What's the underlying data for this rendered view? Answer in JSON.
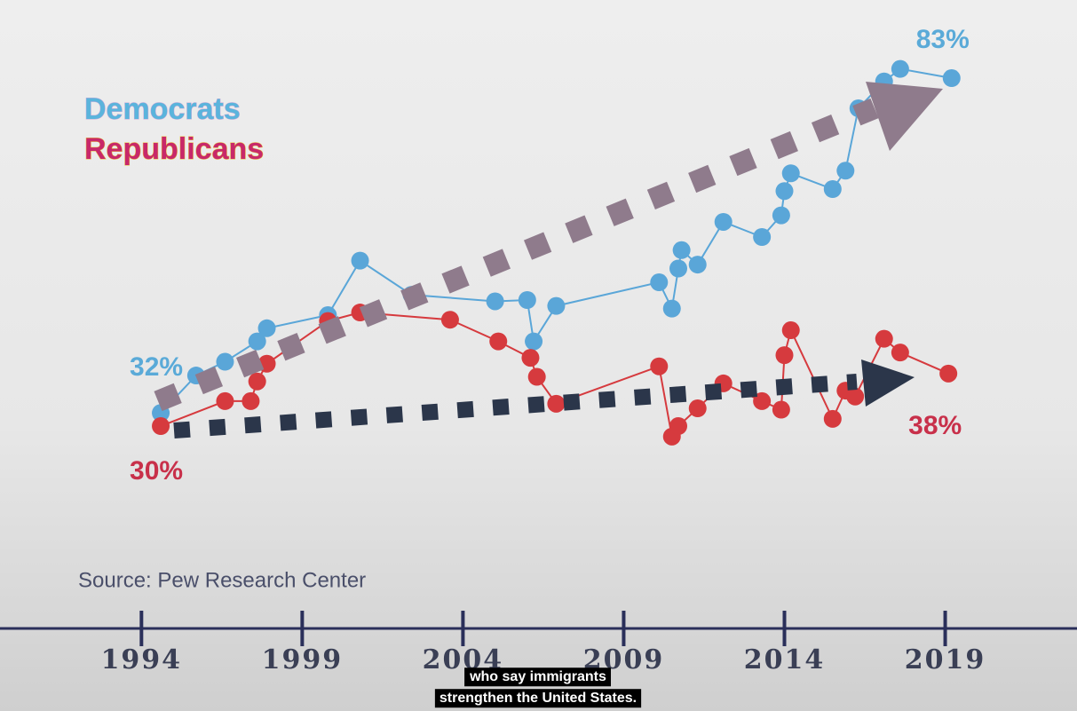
{
  "chart_data": {
    "type": "line",
    "series": [
      {
        "name": "Democrats",
        "color": "#5aa6d8",
        "x": [
          1994.6,
          1995.7,
          1996.6,
          1997.6,
          1997.9,
          1999.8,
          2000.8,
          2002.4,
          2005.0,
          2006.0,
          2006.2,
          2006.9,
          2010.1,
          2010.5,
          2010.7,
          2010.8,
          2011.3,
          2012.1,
          2013.3,
          2013.9,
          2014.0,
          2014.2,
          2015.5,
          2015.9,
          2016.3,
          2017.1,
          2017.6,
          2019.2
        ],
        "values": [
          32,
          37.7,
          39.8,
          42.9,
          44.9,
          46.9,
          55.2,
          50.0,
          49.0,
          49.2,
          42.9,
          48.3,
          51.9,
          47.9,
          54.0,
          56.8,
          54.6,
          61.1,
          58.8,
          62.1,
          65.8,
          68.5,
          66.1,
          68.9,
          78.4,
          82.5,
          84.4,
          83
        ],
        "value_labels": [
          "32%",
          null,
          null,
          null,
          null,
          null,
          null,
          null,
          null,
          null,
          null,
          null,
          null,
          null,
          null,
          null,
          null,
          null,
          null,
          null,
          null,
          null,
          null,
          null,
          null,
          null,
          null,
          "83%"
        ]
      },
      {
        "name": "Republicans",
        "color": "#d63a3e",
        "x": [
          1994.6,
          1996.6,
          1997.4,
          1997.6,
          1997.9,
          1999.8,
          2000.8,
          2003.6,
          2005.1,
          2006.1,
          2006.3,
          2006.9,
          2010.1,
          2010.5,
          2010.7,
          2011.3,
          2012.1,
          2013.3,
          2013.9,
          2014.0,
          2014.2,
          2015.5,
          2015.9,
          2016.2,
          2017.1,
          2017.6,
          2019.1
        ],
        "values": [
          30,
          33.8,
          33.8,
          36.8,
          39.5,
          46.0,
          47.3,
          46.2,
          42.9,
          40.4,
          37.5,
          33.4,
          39.1,
          28.4,
          30.0,
          32.7,
          36.5,
          33.8,
          32.5,
          40.8,
          44.6,
          31.1,
          35.4,
          34.5,
          43.3,
          41.2,
          38
        ],
        "value_labels": [
          "30%",
          null,
          null,
          null,
          null,
          null,
          null,
          null,
          null,
          null,
          null,
          null,
          null,
          null,
          null,
          null,
          null,
          null,
          null,
          null,
          null,
          null,
          null,
          null,
          null,
          null,
          "38%"
        ]
      }
    ],
    "xlim": [
      1989.6,
      2023.1
    ],
    "ylim": [
      -13.4,
      94.9
    ],
    "xticks": [
      1994,
      1999,
      2004,
      2009,
      2014,
      2019
    ],
    "source": "Source: Pew Research Center",
    "caption": [
      "who say immigrants",
      "strengthen the United States."
    ]
  }
}
